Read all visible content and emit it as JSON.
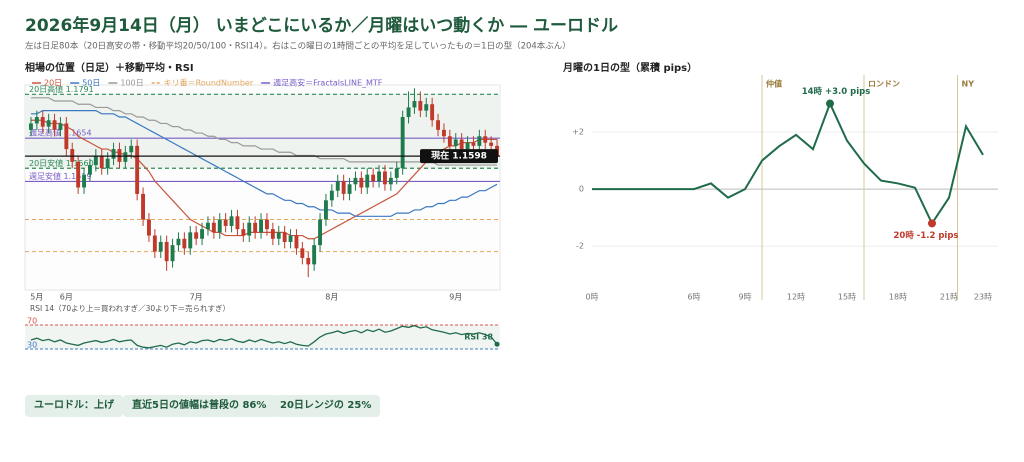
{
  "header": {
    "title": "2026年9月14日（月） いまどこにいるか／月曜はいつ動くか ― ユーロドル",
    "subtitle": "左は日足80本（20日高安の帯・移動平均20/50/100・RSI14）。右はこの曜日の1時間ごとの平均を足していったもの＝1日の型（204本ぶん）"
  },
  "badges": [
    "ユーロドル：上げ",
    "直近5日の値幅は普段の 86%",
    "20日レンジの 25%"
  ],
  "chart_data": [
    {
      "type": "candlestick",
      "title": "相場の位置（日足）＋移動平均・RSI",
      "up_color": "#1f7a4d",
      "down_color": "#c0392b",
      "ylim": [
        1.118,
        1.182
      ],
      "categories": [
        null,
        "5月",
        null,
        null,
        null,
        null,
        "6月",
        null,
        null,
        null,
        null,
        null,
        null,
        null,
        null,
        null,
        null,
        null,
        null,
        null,
        null,
        null,
        null,
        null,
        null,
        null,
        null,
        null,
        "7月",
        null,
        null,
        null,
        null,
        null,
        null,
        null,
        null,
        null,
        null,
        null,
        null,
        null,
        null,
        null,
        null,
        null,
        null,
        null,
        null,
        null,
        null,
        "8月",
        null,
        null,
        null,
        null,
        null,
        null,
        null,
        null,
        null,
        null,
        null,
        null,
        null,
        null,
        null,
        null,
        null,
        null,
        null,
        null,
        "9月",
        null,
        null,
        null,
        null,
        null,
        null,
        null
      ],
      "ohlc": [
        [
          1.168,
          1.172,
          1.166,
          1.17
        ],
        [
          1.17,
          1.174,
          1.168,
          1.172
        ],
        [
          1.172,
          1.174,
          1.167,
          1.169
        ],
        [
          1.169,
          1.173,
          1.167,
          1.171
        ],
        [
          1.171,
          1.173,
          1.166,
          1.168
        ],
        [
          1.168,
          1.172,
          1.166,
          1.17
        ],
        [
          1.17,
          1.172,
          1.16,
          1.162
        ],
        [
          1.162,
          1.164,
          1.156,
          1.158
        ],
        [
          1.158,
          1.16,
          1.148,
          1.15
        ],
        [
          1.15,
          1.156,
          1.148,
          1.154
        ],
        [
          1.154,
          1.159,
          1.152,
          1.157
        ],
        [
          1.157,
          1.162,
          1.155,
          1.16
        ],
        [
          1.16,
          1.162,
          1.154,
          1.156
        ],
        [
          1.156,
          1.161,
          1.154,
          1.159
        ],
        [
          1.159,
          1.164,
          1.157,
          1.162
        ],
        [
          1.162,
          1.164,
          1.156,
          1.158
        ],
        [
          1.158,
          1.163,
          1.156,
          1.161
        ],
        [
          1.161,
          1.165,
          1.159,
          1.163
        ],
        [
          1.163,
          1.165,
          1.146,
          1.148
        ],
        [
          1.148,
          1.15,
          1.138,
          1.14
        ],
        [
          1.14,
          1.142,
          1.133,
          1.135
        ],
        [
          1.135,
          1.137,
          1.128,
          1.13
        ],
        [
          1.13,
          1.135,
          1.128,
          1.133
        ],
        [
          1.133,
          1.135,
          1.124,
          1.127
        ],
        [
          1.127,
          1.134,
          1.125,
          1.132
        ],
        [
          1.132,
          1.136,
          1.13,
          1.134
        ],
        [
          1.134,
          1.136,
          1.129,
          1.131
        ],
        [
          1.131,
          1.138,
          1.129,
          1.136
        ],
        [
          1.136,
          1.138,
          1.132,
          1.134
        ],
        [
          1.134,
          1.139,
          1.132,
          1.137
        ],
        [
          1.137,
          1.141,
          1.135,
          1.139
        ],
        [
          1.139,
          1.141,
          1.134,
          1.136
        ],
        [
          1.136,
          1.142,
          1.134,
          1.14
        ],
        [
          1.14,
          1.142,
          1.136,
          1.138
        ],
        [
          1.138,
          1.143,
          1.136,
          1.141
        ],
        [
          1.141,
          1.143,
          1.135,
          1.137
        ],
        [
          1.137,
          1.139,
          1.133,
          1.135
        ],
        [
          1.135,
          1.141,
          1.133,
          1.139
        ],
        [
          1.139,
          1.141,
          1.134,
          1.136
        ],
        [
          1.136,
          1.142,
          1.134,
          1.14
        ],
        [
          1.14,
          1.142,
          1.135,
          1.137
        ],
        [
          1.137,
          1.139,
          1.132,
          1.134
        ],
        [
          1.134,
          1.138,
          1.132,
          1.136
        ],
        [
          1.136,
          1.138,
          1.131,
          1.133
        ],
        [
          1.133,
          1.137,
          1.131,
          1.135
        ],
        [
          1.135,
          1.137,
          1.129,
          1.131
        ],
        [
          1.131,
          1.133,
          1.126,
          1.128
        ],
        [
          1.128,
          1.13,
          1.122,
          1.126
        ],
        [
          1.126,
          1.134,
          1.124,
          1.132
        ],
        [
          1.132,
          1.142,
          1.13,
          1.14
        ],
        [
          1.14,
          1.148,
          1.138,
          1.146
        ],
        [
          1.146,
          1.151,
          1.144,
          1.149
        ],
        [
          1.149,
          1.154,
          1.147,
          1.152
        ],
        [
          1.152,
          1.154,
          1.146,
          1.148
        ],
        [
          1.148,
          1.153,
          1.146,
          1.151
        ],
        [
          1.151,
          1.155,
          1.149,
          1.153
        ],
        [
          1.153,
          1.155,
          1.148,
          1.15
        ],
        [
          1.15,
          1.156,
          1.148,
          1.154
        ],
        [
          1.154,
          1.156,
          1.15,
          1.152
        ],
        [
          1.152,
          1.157,
          1.15,
          1.155
        ],
        [
          1.155,
          1.157,
          1.149,
          1.151
        ],
        [
          1.151,
          1.155,
          1.149,
          1.153
        ],
        [
          1.153,
          1.158,
          1.151,
          1.156
        ],
        [
          1.156,
          1.174,
          1.154,
          1.172
        ],
        [
          1.172,
          1.18,
          1.17,
          1.175
        ],
        [
          1.175,
          1.181,
          1.173,
          1.177
        ],
        [
          1.177,
          1.18,
          1.172,
          1.174
        ],
        [
          1.174,
          1.178,
          1.172,
          1.176
        ],
        [
          1.176,
          1.178,
          1.169,
          1.171
        ],
        [
          1.171,
          1.173,
          1.166,
          1.168
        ],
        [
          1.168,
          1.17,
          1.164,
          1.166
        ],
        [
          1.166,
          1.168,
          1.161,
          1.163
        ],
        [
          1.163,
          1.167,
          1.161,
          1.165
        ],
        [
          1.165,
          1.167,
          1.16,
          1.162
        ],
        [
          1.162,
          1.166,
          1.16,
          1.164
        ],
        [
          1.164,
          1.166,
          1.161,
          1.163
        ],
        [
          1.163,
          1.168,
          1.161,
          1.166
        ],
        [
          1.166,
          1.168,
          1.162,
          1.164
        ],
        [
          1.164,
          1.166,
          1.161,
          1.163
        ],
        [
          1.163,
          1.165,
          1.1578,
          1.1598
        ]
      ],
      "series": [
        {
          "name": "20日",
          "color": "#c8553d",
          "values": [
            1.171,
            1.171,
            1.171,
            1.17,
            1.17,
            1.17,
            1.169,
            1.168,
            1.166,
            1.165,
            1.164,
            1.163,
            1.162,
            1.162,
            1.161,
            1.161,
            1.16,
            1.16,
            1.159,
            1.157,
            1.155,
            1.152,
            1.15,
            1.148,
            1.146,
            1.144,
            1.142,
            1.14,
            1.139,
            1.138,
            1.137,
            1.136,
            1.136,
            1.135,
            1.135,
            1.135,
            1.135,
            1.136,
            1.136,
            1.136,
            1.136,
            1.136,
            1.136,
            1.136,
            1.135,
            1.135,
            1.135,
            1.134,
            1.134,
            1.135,
            1.136,
            1.137,
            1.138,
            1.139,
            1.14,
            1.141,
            1.142,
            1.143,
            1.144,
            1.145,
            1.146,
            1.147,
            1.148,
            1.15,
            1.152,
            1.154,
            1.156,
            1.158,
            1.16,
            1.161,
            1.162,
            1.163,
            1.163,
            1.164,
            1.164,
            1.164,
            1.165,
            1.165,
            1.165,
            1.165
          ]
        },
        {
          "name": "50日",
          "color": "#3a78c2",
          "values": [
            1.173,
            1.173,
            1.174,
            1.174,
            1.174,
            1.174,
            1.174,
            1.174,
            1.174,
            1.174,
            1.174,
            1.174,
            1.173,
            1.173,
            1.173,
            1.172,
            1.172,
            1.171,
            1.17,
            1.169,
            1.168,
            1.167,
            1.166,
            1.165,
            1.164,
            1.163,
            1.162,
            1.161,
            1.16,
            1.159,
            1.158,
            1.157,
            1.156,
            1.155,
            1.154,
            1.153,
            1.152,
            1.151,
            1.15,
            1.149,
            1.148,
            1.148,
            1.147,
            1.146,
            1.146,
            1.145,
            1.145,
            1.144,
            1.144,
            1.143,
            1.143,
            1.143,
            1.142,
            1.142,
            1.142,
            1.141,
            1.141,
            1.141,
            1.141,
            1.141,
            1.141,
            1.141,
            1.142,
            1.142,
            1.142,
            1.143,
            1.143,
            1.144,
            1.144,
            1.145,
            1.145,
            1.146,
            1.146,
            1.147,
            1.147,
            1.148,
            1.149,
            1.149,
            1.15,
            1.151
          ]
        },
        {
          "name": "100日",
          "color": "#9a9a9a",
          "values": [
            1.178,
            1.178,
            1.178,
            1.178,
            1.177,
            1.177,
            1.177,
            1.177,
            1.176,
            1.176,
            1.176,
            1.175,
            1.175,
            1.175,
            1.174,
            1.174,
            1.173,
            1.173,
            1.172,
            1.172,
            1.171,
            1.171,
            1.17,
            1.17,
            1.169,
            1.169,
            1.168,
            1.168,
            1.167,
            1.167,
            1.166,
            1.166,
            1.165,
            1.165,
            1.164,
            1.164,
            1.163,
            1.163,
            1.163,
            1.162,
            1.162,
            1.162,
            1.161,
            1.161,
            1.161,
            1.16,
            1.16,
            1.16,
            1.16,
            1.159,
            1.159,
            1.159,
            1.159,
            1.159,
            1.158,
            1.158,
            1.158,
            1.158,
            1.158,
            1.158,
            1.158,
            1.158,
            1.158,
            1.158,
            1.158,
            1.158,
            1.158,
            1.158,
            1.158,
            1.157,
            1.157,
            1.157,
            1.157,
            1.157,
            1.157,
            1.157,
            1.157,
            1.157,
            1.157,
            1.157
          ]
        }
      ],
      "round_numbers": {
        "name": "キリ番＝RoundNumber",
        "color": "#e3a55a",
        "values": [
          1.14,
          1.13
        ]
      },
      "weekly_levels": {
        "name": "週足高安＝FractalsLINE_MTF",
        "color": "#7b5cc7",
        "levels": [
          {
            "label": "週足高値 1.1654",
            "value": 1.1654
          },
          {
            "label": "週足安値 1.1519",
            "value": 1.1519
          }
        ]
      },
      "range_levels": {
        "color": "#2e8b57",
        "band_color": "#eef3ef",
        "levels": [
          {
            "label": "20日高値 1.1791",
            "value": 1.1791
          },
          {
            "label": "20日安値 1.1560",
            "value": 1.156
          }
        ]
      },
      "current": {
        "label": "現在 1.1598",
        "value": 1.1598,
        "color": "#111111"
      }
    },
    {
      "type": "line",
      "title": "RSI 14（70より上＝買われすぎ／30より下＝売られすぎ）",
      "color": "#1f6b4a",
      "ylim": [
        20,
        80
      ],
      "yticks": [
        70,
        30
      ],
      "level_colors": [
        "#d9534f",
        "#3a78c2"
      ],
      "band_color": "#f1f5f2",
      "last_label": "RSI 38",
      "values": [
        45,
        48,
        44,
        46,
        42,
        45,
        40,
        38,
        36,
        40,
        42,
        44,
        41,
        43,
        46,
        42,
        44,
        45,
        36,
        33,
        32,
        34,
        36,
        33,
        38,
        40,
        37,
        42,
        40,
        44,
        45,
        42,
        46,
        44,
        47,
        43,
        41,
        45,
        42,
        46,
        43,
        40,
        42,
        39,
        42,
        38,
        36,
        35,
        42,
        50,
        55,
        57,
        60,
        56,
        59,
        61,
        57,
        62,
        59,
        63,
        58,
        60,
        64,
        68,
        66,
        69,
        65,
        67,
        62,
        60,
        58,
        55,
        57,
        54,
        56,
        55,
        57,
        54,
        50,
        38
      ]
    },
    {
      "type": "line",
      "title": "月曜の1日の型（累積 pips）",
      "color": "#1f6b4a",
      "ylim": [
        -3.5,
        4
      ],
      "xlim": [
        0,
        23
      ],
      "grid": true,
      "yticks": [
        {
          "value": 2,
          "label": "+2"
        },
        0,
        -2
      ],
      "xticks": [
        {
          "value": 0,
          "label": "0時"
        },
        {
          "value": 6,
          "label": "6時"
        },
        {
          "value": 9,
          "label": "9時"
        },
        {
          "value": 12,
          "label": "12時"
        },
        {
          "value": 15,
          "label": "15時"
        },
        {
          "value": 18,
          "label": "18時"
        },
        {
          "value": 21,
          "label": "21時"
        },
        {
          "value": 23,
          "label": "23時"
        }
      ],
      "x": [
        0,
        1,
        2,
        3,
        4,
        5,
        6,
        7,
        8,
        9,
        10,
        11,
        12,
        13,
        14,
        15,
        16,
        17,
        18,
        19,
        20,
        21,
        22,
        23
      ],
      "values": [
        0,
        0,
        0,
        0,
        0,
        0,
        0,
        0.2,
        -0.3,
        0,
        1.0,
        1.5,
        1.9,
        1.4,
        3.0,
        1.7,
        0.9,
        0.3,
        0.2,
        0.05,
        -1.2,
        -0.3,
        2.2,
        1.2
      ],
      "sessions": {
        "color": "#d8c79a",
        "items": [
          {
            "label": "仲値",
            "x": 10
          },
          {
            "label": "ロンドン",
            "x": 16
          },
          {
            "label": "NY",
            "x": 21.5
          }
        ]
      },
      "annotations": [
        {
          "x": 14,
          "value": 3.0,
          "text": "14時 +3.0 pips",
          "color": "#1f6b4a"
        },
        {
          "x": 20,
          "value": -1.2,
          "text": "20時 -1.2 pips",
          "color": "#c0392b"
        }
      ]
    }
  ]
}
